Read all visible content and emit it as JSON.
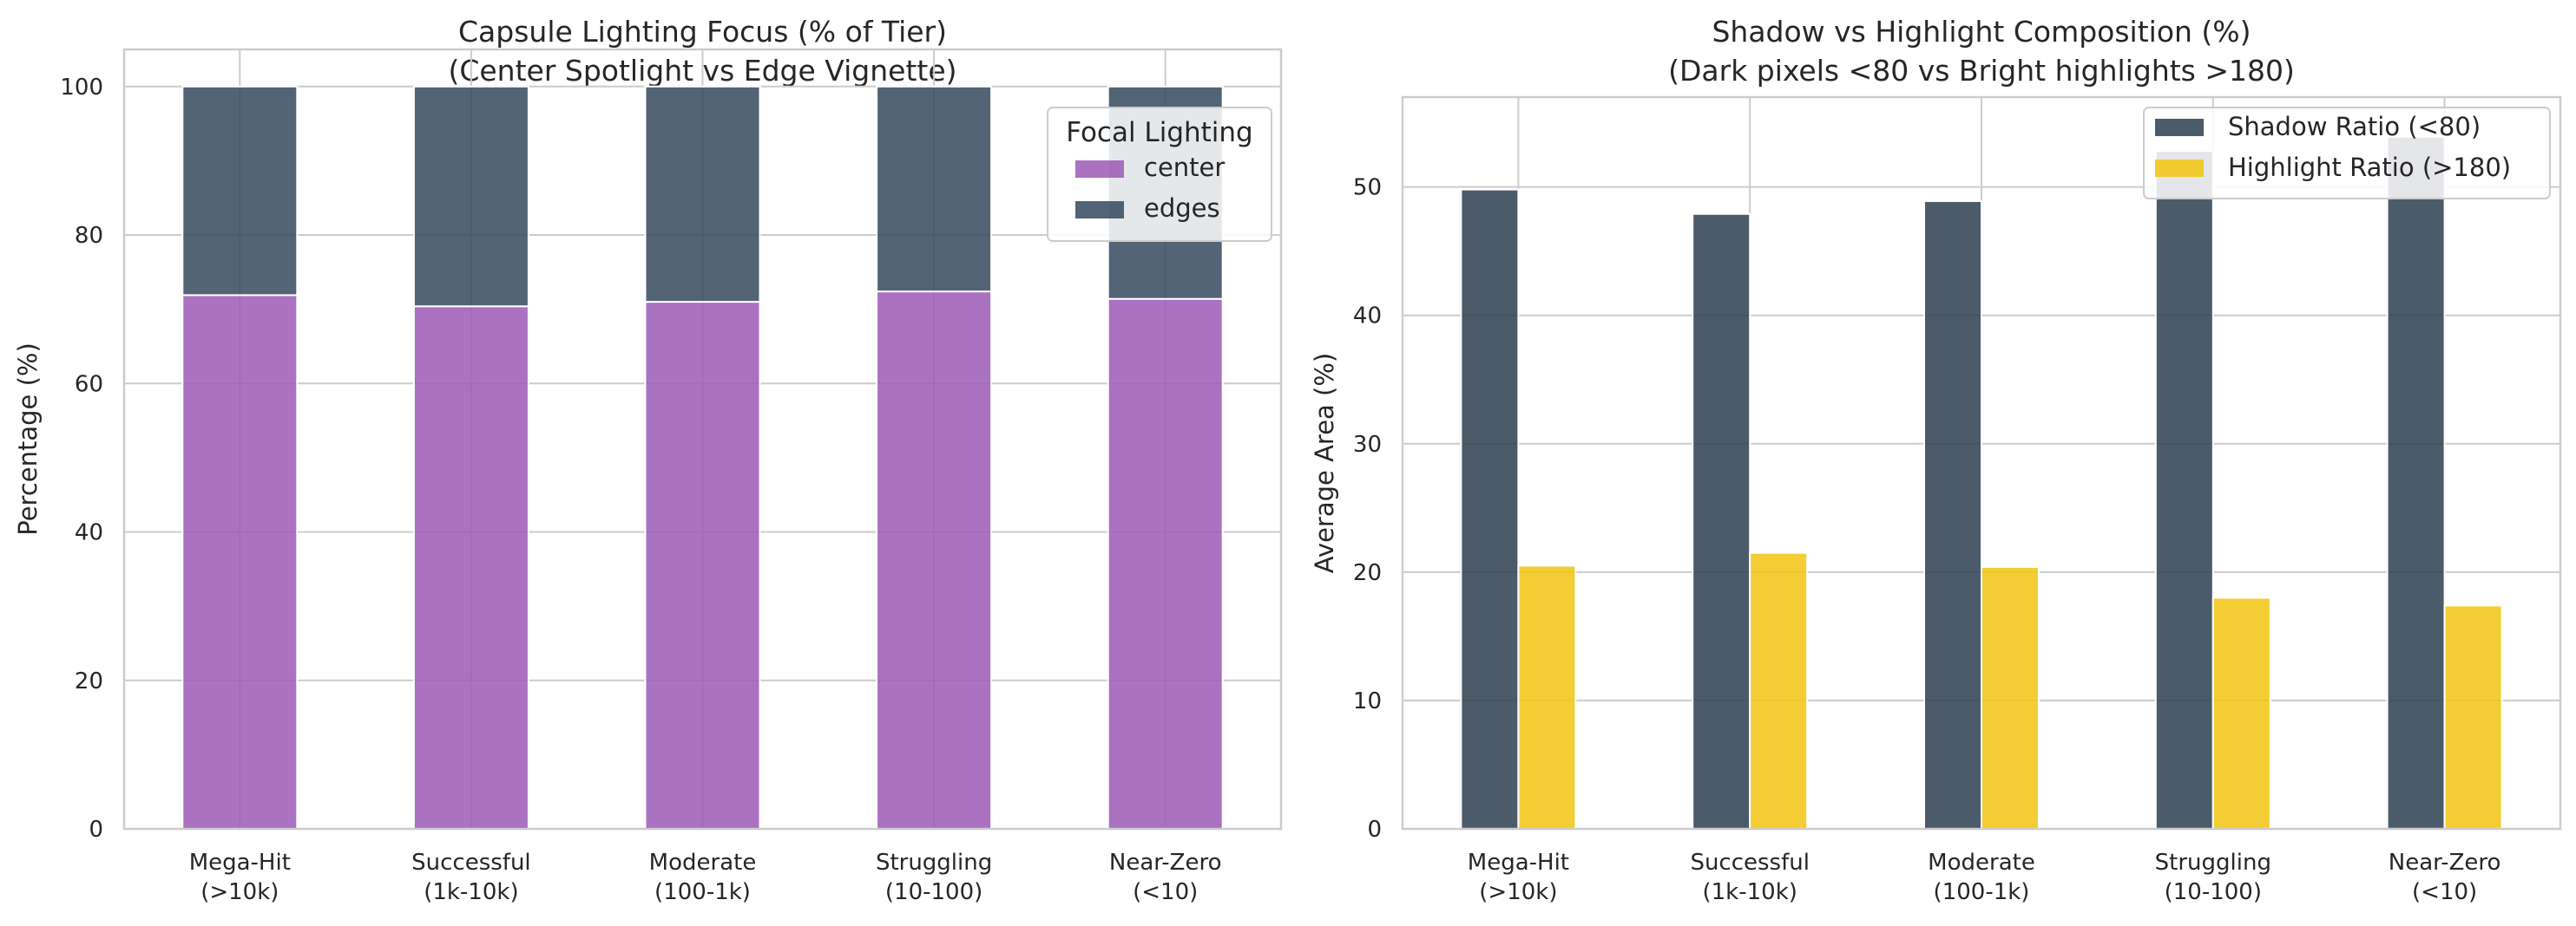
{
  "chart_data": [
    {
      "type": "bar",
      "stacked": true,
      "title_line1": "Capsule Lighting Focus (% of Tier)",
      "title_line2": "(Center Spotlight vs Edge Vignette)",
      "xlabel": "",
      "ylabel": "Percentage (%)",
      "ylim": [
        0,
        105
      ],
      "yticks": [
        0,
        20,
        40,
        60,
        80,
        100
      ],
      "categories": [
        [
          "Mega-Hit",
          "(>10k)"
        ],
        [
          "Successful",
          "(1k-10k)"
        ],
        [
          "Moderate",
          "(100-1k)"
        ],
        [
          "Struggling",
          "(10-100)"
        ],
        [
          "Near-Zero",
          "(<10)"
        ]
      ],
      "series": [
        {
          "name": "center",
          "color": "#9b59b6",
          "values": [
            71.9,
            70.4,
            71.0,
            72.4,
            71.4
          ]
        },
        {
          "name": "edges",
          "color": "#34495e",
          "values": [
            28.1,
            29.6,
            29.0,
            27.6,
            28.6
          ]
        }
      ],
      "legend": {
        "title": "Focal Lighting",
        "placement": "top-right"
      },
      "grid": true
    },
    {
      "type": "bar",
      "stacked": false,
      "title_line1": "Shadow vs Highlight Composition (%)",
      "title_line2": "(Dark pixels <80 vs Bright highlights >180)",
      "xlabel": "",
      "ylabel": "Average Area (%)",
      "ylim": [
        0,
        57
      ],
      "yticks": [
        0,
        10,
        20,
        30,
        40,
        50
      ],
      "categories": [
        [
          "Mega-Hit",
          "(>10k)"
        ],
        [
          "Successful",
          "(1k-10k)"
        ],
        [
          "Moderate",
          "(100-1k)"
        ],
        [
          "Struggling",
          "(10-100)"
        ],
        [
          "Near-Zero",
          "(<10)"
        ]
      ],
      "series": [
        {
          "name": "Shadow Ratio (<80)",
          "color": "#2c3e50",
          "values": [
            49.8,
            47.9,
            48.9,
            52.8,
            53.9
          ]
        },
        {
          "name": "Highlight Ratio (>180)",
          "color": "#f1c40f",
          "values": [
            20.5,
            21.5,
            20.4,
            18.0,
            17.4
          ]
        }
      ],
      "legend": {
        "title": "",
        "placement": "top-right"
      },
      "grid": true
    }
  ]
}
